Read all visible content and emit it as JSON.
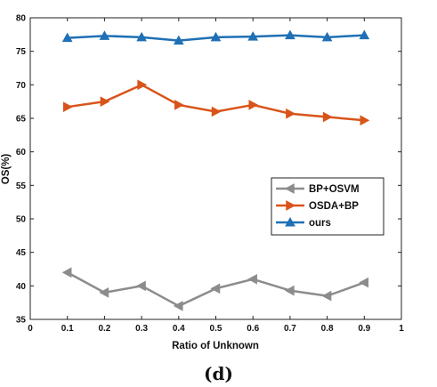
{
  "caption": "(d)",
  "chart_data": {
    "type": "line",
    "title": "",
    "xlabel": "Ratio of Unknown",
    "ylabel": "OS(%)",
    "xlim": [
      0,
      1
    ],
    "ylim": [
      35,
      80
    ],
    "xticks": [
      "0",
      "0.1",
      "0.2",
      "0.3",
      "0.4",
      "0.5",
      "0.6",
      "0.7",
      "0.8",
      "0.9",
      "1"
    ],
    "yticks": [
      "35",
      "40",
      "45",
      "50",
      "55",
      "60",
      "65",
      "70",
      "75",
      "80"
    ],
    "grid": false,
    "legend_position": "right",
    "x": [
      0.1,
      0.2,
      0.3,
      0.4,
      0.5,
      0.6,
      0.7,
      0.8,
      0.9
    ],
    "series": [
      {
        "name": "BP+OSVM",
        "marker": "triangle-left",
        "color": "#8c8c8c",
        "values": [
          42.0,
          39.0,
          40.0,
          37.0,
          39.6,
          41.0,
          39.3,
          38.5,
          40.5
        ]
      },
      {
        "name": "OSDA+BP",
        "marker": "triangle-right",
        "color": "#d9541a",
        "values": [
          66.7,
          67.5,
          70.0,
          67.0,
          66.0,
          67.0,
          65.7,
          65.2,
          64.7
        ]
      },
      {
        "name": "ours",
        "marker": "triangle-up",
        "color": "#1f70b5",
        "values": [
          77.0,
          77.3,
          77.1,
          76.6,
          77.1,
          77.2,
          77.4,
          77.1,
          77.4
        ]
      }
    ]
  }
}
